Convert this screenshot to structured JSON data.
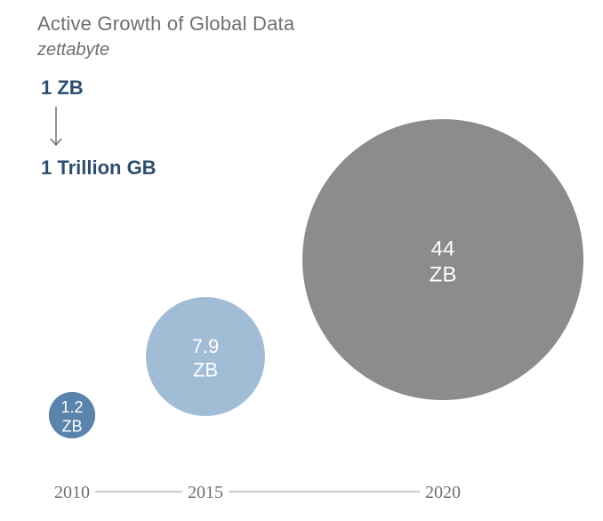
{
  "header": {
    "title": "Active Growth of Global Data",
    "subtitle": "zettabyte",
    "conversion_from": "1 ZB",
    "conversion_to": "1 Trillion GB"
  },
  "colors": {
    "text_gray": "#6f6f6f",
    "dark_blue": "#2f4e6e",
    "bubble_2010": "#5b84ad",
    "bubble_2015": "#a1bcd5",
    "bubble_2020": "#8c8c8c",
    "axis_line": "#9a9a9a"
  },
  "chart_data": {
    "type": "bubble",
    "title": "Active Growth of Global Data",
    "subtitle": "zettabyte",
    "x": [
      "2010",
      "2015",
      "2020"
    ],
    "values": [
      1.2,
      7.9,
      44
    ],
    "value_labels": [
      "1.2",
      "7.9",
      "44"
    ],
    "unit_label": "ZB",
    "series": [
      {
        "year": "2010",
        "value": 1.2,
        "color": "#5b84ad"
      },
      {
        "year": "2015",
        "value": 7.9,
        "color": "#a1bcd5"
      },
      {
        "year": "2020",
        "value": 44,
        "color": "#8c8c8c"
      }
    ],
    "grid": false,
    "legend": "none"
  }
}
